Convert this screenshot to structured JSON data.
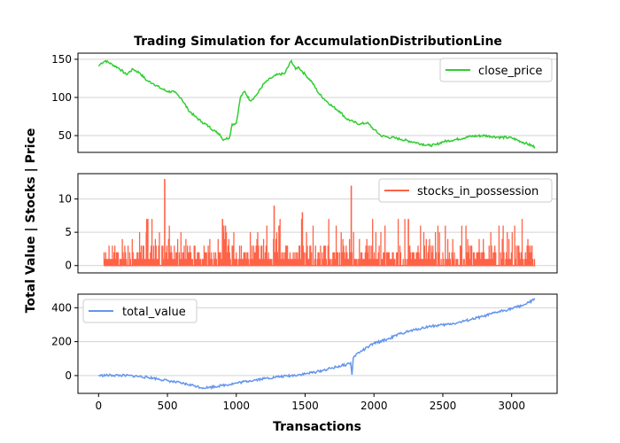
{
  "chart_data": {
    "type": "line",
    "title": "Trading Simulation for AccumulationDistributionLine",
    "xlabel": "Transactions",
    "ylabel": "Total Value | Stocks | Price",
    "xlim": [
      -150,
      3330
    ],
    "x_ticks": [
      0,
      500,
      1000,
      1500,
      2000,
      2500,
      3000
    ],
    "grid": "horizontal",
    "panels": [
      {
        "name": "close_price",
        "legend": "close_price",
        "legend_loc": "upper right",
        "color": "#32cd32",
        "ylim": [
          28,
          158
        ],
        "y_ticks": [
          50,
          100,
          150
        ],
        "style": "line",
        "x": [
          0,
          20,
          50,
          100,
          150,
          200,
          250,
          300,
          350,
          400,
          450,
          500,
          550,
          600,
          650,
          700,
          750,
          800,
          850,
          880,
          900,
          950,
          970,
          1000,
          1030,
          1060,
          1100,
          1130,
          1150,
          1200,
          1250,
          1300,
          1350,
          1400,
          1430,
          1450,
          1500,
          1550,
          1600,
          1650,
          1700,
          1750,
          1800,
          1850,
          1900,
          1950,
          2000,
          2050,
          2100,
          2150,
          2200,
          2300,
          2400,
          2450,
          2500,
          2600,
          2700,
          2800,
          2900,
          3000,
          3100,
          3170
        ],
        "values": [
          141,
          145,
          148,
          143,
          138,
          130,
          137,
          132,
          122,
          118,
          112,
          108,
          107,
          99,
          84,
          75,
          68,
          62,
          55,
          52,
          45,
          47,
          65,
          66,
          100,
          108,
          96,
          100,
          104,
          118,
          125,
          130,
          131,
          148,
          137,
          140,
          130,
          120,
          105,
          96,
          88,
          82,
          72,
          68,
          65,
          67,
          58,
          50,
          48,
          47,
          45,
          41,
          37,
          38,
          42,
          45,
          49,
          50,
          48,
          47,
          40,
          35
        ]
      },
      {
        "name": "stocks_in_possession",
        "legend": "stocks_in_possession",
        "legend_loc": "upper right",
        "color": "#ff6347",
        "ylim": [
          -1.1,
          13.8
        ],
        "y_ticks": [
          0,
          5,
          10
        ],
        "style": "spikes",
        "x_start": 0,
        "x_end": 3170,
        "tall_spikes": [
          {
            "x": 480,
            "value": 13
          },
          {
            "x": 1835,
            "value": 12
          },
          {
            "x": 1275,
            "value": 9
          },
          {
            "x": 1310,
            "value": 6
          },
          {
            "x": 1480,
            "value": 8
          },
          {
            "x": 350,
            "value": 7
          },
          {
            "x": 900,
            "value": 7
          },
          {
            "x": 2250,
            "value": 7
          }
        ]
      },
      {
        "name": "total_value",
        "legend": "total_value",
        "legend_loc": "upper left",
        "color": "#6495ed",
        "ylim": [
          -105,
          480
        ],
        "y_ticks": [
          0,
          200,
          400
        ],
        "style": "line",
        "x": [
          0,
          100,
          200,
          300,
          400,
          500,
          600,
          700,
          750,
          800,
          900,
          1000,
          1100,
          1200,
          1300,
          1400,
          1500,
          1600,
          1700,
          1800,
          1830,
          1840,
          1850,
          1870,
          1900,
          2000,
          2100,
          2200,
          2300,
          2400,
          2500,
          2600,
          2700,
          2800,
          2900,
          3000,
          3100,
          3170
        ],
        "values": [
          0,
          2,
          0,
          -5,
          -15,
          -30,
          -45,
          -60,
          -72,
          -70,
          -58,
          -45,
          -30,
          -18,
          -8,
          0,
          10,
          25,
          45,
          65,
          75,
          5,
          105,
          125,
          140,
          190,
          215,
          250,
          270,
          290,
          298,
          310,
          330,
          350,
          375,
          395,
          420,
          450
        ]
      }
    ]
  }
}
